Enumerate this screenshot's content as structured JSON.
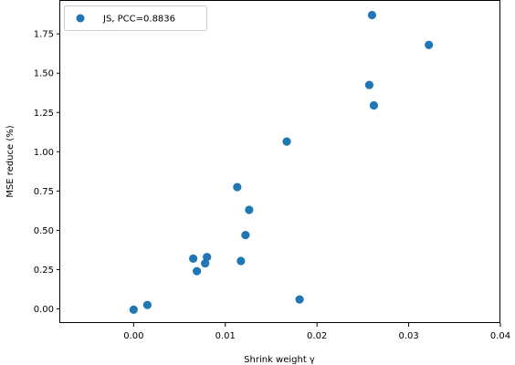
{
  "chart_data": {
    "type": "scatter",
    "title": "",
    "xlabel": "Shrink weight γ",
    "ylabel": "MSE reduce (%)",
    "xlim": [
      -0.008,
      0.04
    ],
    "ylim": [
      -0.09,
      1.96
    ],
    "xticks": [
      0.0,
      0.01,
      0.02,
      0.03,
      0.04
    ],
    "xtick_labels": [
      "0.00",
      "0.01",
      "0.02",
      "0.03",
      "0.04"
    ],
    "yticks": [
      0.0,
      0.25,
      0.5,
      0.75,
      1.0,
      1.25,
      1.5,
      1.75
    ],
    "ytick_labels": [
      "0.00",
      "0.25",
      "0.50",
      "0.75",
      "1.00",
      "1.25",
      "1.50",
      "1.75"
    ],
    "grid": false,
    "legend_position": "top-left",
    "color": "#1f77b4",
    "series": [
      {
        "name": "JS, PCC=0.8836",
        "points": [
          {
            "x": 0.0,
            "y": -0.005
          },
          {
            "x": 0.0015,
            "y": 0.025
          },
          {
            "x": 0.0065,
            "y": 0.32
          },
          {
            "x": 0.0069,
            "y": 0.24
          },
          {
            "x": 0.0078,
            "y": 0.29
          },
          {
            "x": 0.008,
            "y": 0.33
          },
          {
            "x": 0.0113,
            "y": 0.775
          },
          {
            "x": 0.0117,
            "y": 0.305
          },
          {
            "x": 0.0122,
            "y": 0.47
          },
          {
            "x": 0.0126,
            "y": 0.63
          },
          {
            "x": 0.0167,
            "y": 1.065
          },
          {
            "x": 0.0181,
            "y": 0.06
          },
          {
            "x": 0.0257,
            "y": 1.425
          },
          {
            "x": 0.026,
            "y": 1.87
          },
          {
            "x": 0.0262,
            "y": 1.295
          },
          {
            "x": 0.0322,
            "y": 1.68
          }
        ]
      }
    ]
  }
}
